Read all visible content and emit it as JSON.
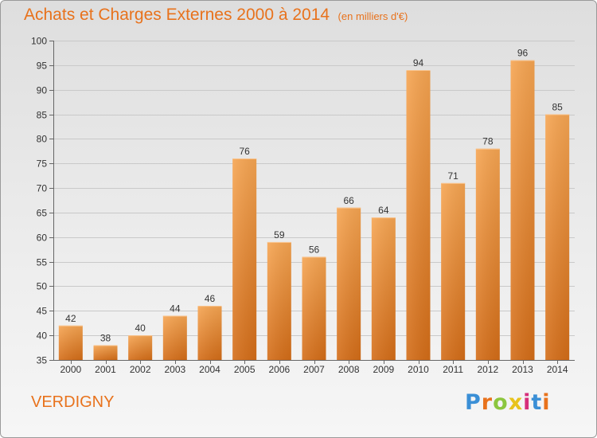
{
  "header": {
    "title": "Achats et Charges Externes 2000 à 2014",
    "subtitle": "(en milliers d'€)"
  },
  "footer": {
    "commune": "VERDIGNY",
    "brand": "Proxiti",
    "brand_colors": [
      "#3a8fd6",
      "#e8721c",
      "#8cc63e",
      "#e8c31c",
      "#d62f7a",
      "#3a8fd6",
      "#e8721c"
    ]
  },
  "colors": {
    "bar_light": "#f6a552",
    "bar_dark": "#d46d18",
    "grid": "#c9c9c9",
    "accent": "#e8721c"
  },
  "chart_data": {
    "type": "bar",
    "title": "Achats et Charges Externes 2000 à 2014",
    "subtitle": "(en milliers d'€)",
    "categories": [
      "2000",
      "2001",
      "2002",
      "2003",
      "2004",
      "2005",
      "2006",
      "2007",
      "2008",
      "2009",
      "2010",
      "2011",
      "2012",
      "2013",
      "2014"
    ],
    "values": [
      42,
      38,
      40,
      44,
      46,
      76,
      59,
      56,
      66,
      64,
      94,
      71,
      78,
      96,
      85
    ],
    "ylim": [
      35,
      100
    ],
    "yticks": [
      35,
      40,
      45,
      50,
      55,
      60,
      65,
      70,
      75,
      80,
      85,
      90,
      95,
      100
    ],
    "grid": true,
    "xlabel": "",
    "ylabel": ""
  }
}
